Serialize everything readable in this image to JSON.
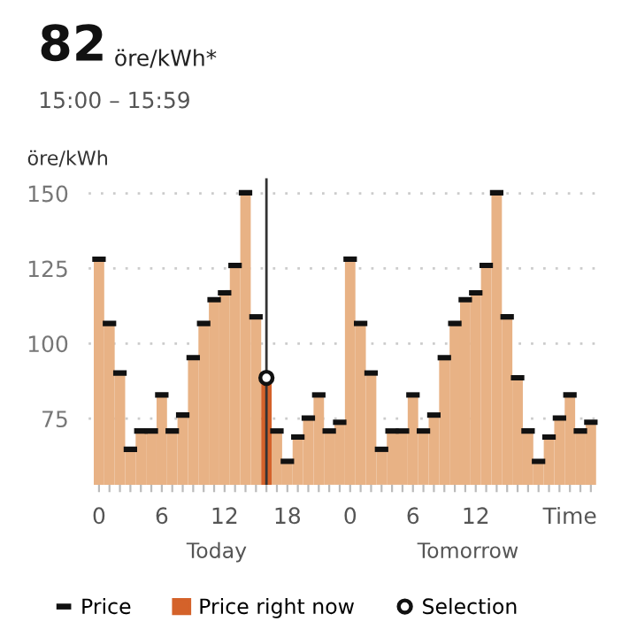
{
  "chart_data": {
    "type": "bar",
    "title": "82",
    "subtitle": "öre/kWh*",
    "ylabel": "öre/kWh",
    "annotations": [
      "15:00 – 15:59",
      "Today",
      "Tomorrow"
    ],
    "categories": [
      "0",
      null,
      null,
      null,
      null,
      null,
      "6",
      null,
      null,
      null,
      null,
      null,
      "12",
      null,
      null,
      null,
      null,
      null,
      "18",
      null,
      null,
      null,
      null,
      null,
      "0",
      null,
      null,
      null,
      null,
      null,
      "6",
      null,
      null,
      null,
      null,
      null,
      "12",
      null,
      null,
      null,
      null,
      null,
      null,
      null,
      null,
      "Time",
      null,
      null
    ],
    "series": [
      {
        "color": "#e8b285",
        "values": [
          128.1,
          106.7,
          90.2,
          64.8,
          70.9,
          70.9,
          82.9,
          70.9,
          76.2,
          95.3,
          106.7,
          114.6,
          116.9,
          126,
          150.2,
          108.9,
          null,
          70.9,
          60.8,
          68.9,
          75.2,
          82.9,
          70.9,
          73.8,
          128.1,
          106.7,
          90.2,
          64.8,
          70.9,
          70.9,
          82.9,
          70.9,
          76.2,
          95.3,
          106.7,
          114.6,
          116.9,
          126,
          150.2,
          108.9,
          88.6,
          70.9,
          60.8,
          68.9,
          75.2,
          82.9,
          70.9,
          73.8
        ]
      },
      {
        "name": "Price",
        "type": "scatter",
        "color": "#111111",
        "values": [
          128.1,
          106.7,
          90.2,
          64.8,
          70.9,
          70.9,
          82.9,
          70.9,
          76.2,
          95.3,
          106.7,
          114.6,
          116.9,
          126,
          150.2,
          108.9,
          null,
          70.9,
          60.8,
          68.9,
          75.2,
          82.9,
          70.9,
          73.8,
          128.1,
          106.7,
          90.2,
          64.8,
          70.9,
          70.9,
          82.9,
          70.9,
          76.2,
          95.3,
          106.7,
          114.6,
          116.9,
          126,
          150.2,
          108.9,
          88.6,
          70.9,
          60.8,
          68.9,
          75.2,
          82.9,
          70.9,
          73.8
        ]
      },
      {
        "name": "Price right now",
        "color": "#d4622a",
        "values": [
          null,
          null,
          null,
          null,
          null,
          null,
          null,
          null,
          null,
          null,
          null,
          null,
          null,
          null,
          null,
          null,
          88.6,
          null,
          null,
          null,
          null,
          null,
          null,
          null,
          null,
          null,
          null,
          null,
          null,
          null,
          null,
          null,
          null,
          null,
          null,
          null,
          null,
          null,
          null,
          null,
          null,
          null,
          null,
          null,
          null,
          null,
          null,
          null
        ]
      },
      {
        "name": "Selection",
        "type": "scatter",
        "color": "#111111",
        "marker": "circle",
        "values": [
          null,
          null,
          null,
          null,
          null,
          null,
          null,
          null,
          null,
          null,
          null,
          null,
          null,
          null,
          null,
          null,
          88.6,
          null,
          null,
          null,
          null,
          null,
          null,
          null,
          null,
          null,
          null,
          null,
          null,
          null,
          null,
          null,
          null,
          null,
          null,
          null,
          null,
          null,
          null,
          null,
          null,
          null,
          null,
          null,
          null,
          null,
          null,
          null
        ]
      }
    ],
    "ref_lines": [
      {
        "axis": "x",
        "color": "#333333"
      }
    ],
    "ylim": [
      53,
      155
    ],
    "yticks": [
      75,
      100,
      125,
      150
    ],
    "grid": "y",
    "legend": "bottom"
  }
}
